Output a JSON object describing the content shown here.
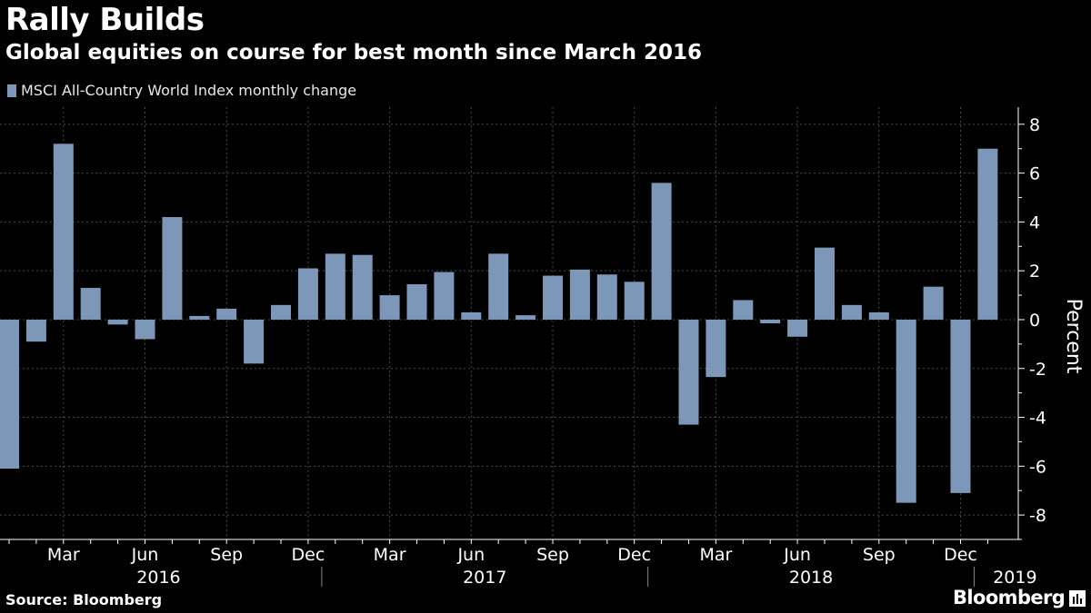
{
  "header": {
    "title": "Rally Builds",
    "subtitle": "Global equities on course for best month since March 2016"
  },
  "footer": {
    "source": "Source: Bloomberg",
    "brand": "Bloomberg"
  },
  "colors": {
    "background": "#000000",
    "bar": "#7d97b9",
    "grid": "#4a4a4a",
    "text": "#ffffff"
  },
  "chart_data": {
    "type": "bar",
    "title": "Global equities on course for best month since March 2016",
    "xlabel": "",
    "ylabel": "Percent",
    "ylim": [
      -9,
      8.7
    ],
    "yticks": [
      8,
      6,
      4,
      2,
      0,
      -2,
      -4,
      -6,
      -8
    ],
    "grid": true,
    "legend": "top-left",
    "series": [
      {
        "name": "MSCI All-Country World Index monthly change",
        "categories": [
          "Jan 2016",
          "Feb 2016",
          "Mar 2016",
          "Apr 2016",
          "May 2016",
          "Jun 2016",
          "Jul 2016",
          "Aug 2016",
          "Sep 2016",
          "Oct 2016",
          "Nov 2016",
          "Dec 2016",
          "Jan 2017",
          "Feb 2017",
          "Mar 2017",
          "Apr 2017",
          "May 2017",
          "Jun 2017",
          "Jul 2017",
          "Aug 2017",
          "Sep 2017",
          "Oct 2017",
          "Nov 2017",
          "Dec 2017",
          "Jan 2018",
          "Feb 2018",
          "Mar 2018",
          "Apr 2018",
          "May 2018",
          "Jun 2018",
          "Jul 2018",
          "Aug 2018",
          "Sep 2018",
          "Oct 2018",
          "Nov 2018",
          "Dec 2018",
          "Jan 2019"
        ],
        "values": [
          -6.1,
          -0.9,
          7.2,
          1.3,
          -0.2,
          -0.8,
          4.2,
          0.15,
          0.45,
          -1.8,
          0.6,
          2.1,
          2.7,
          2.65,
          1.0,
          1.45,
          1.95,
          0.3,
          2.7,
          0.18,
          1.8,
          2.05,
          1.85,
          1.55,
          5.6,
          -4.3,
          -2.35,
          0.8,
          -0.15,
          -0.7,
          2.95,
          0.6,
          0.3,
          -7.5,
          1.35,
          -7.1,
          7.0
        ]
      }
    ],
    "month_ticks": [
      {
        "label": "Mar",
        "index": 2
      },
      {
        "label": "Jun",
        "index": 5
      },
      {
        "label": "Sep",
        "index": 8
      },
      {
        "label": "Dec",
        "index": 11
      },
      {
        "label": "Mar",
        "index": 14
      },
      {
        "label": "Jun",
        "index": 17
      },
      {
        "label": "Sep",
        "index": 20
      },
      {
        "label": "Dec",
        "index": 23
      },
      {
        "label": "Mar",
        "index": 26
      },
      {
        "label": "Jun",
        "index": 29
      },
      {
        "label": "Sep",
        "index": 32
      },
      {
        "label": "Dec",
        "index": 35
      }
    ],
    "years": [
      {
        "label": "2016",
        "start": 0,
        "end": 11
      },
      {
        "label": "2017",
        "start": 12,
        "end": 23
      },
      {
        "label": "2018",
        "start": 24,
        "end": 35
      },
      {
        "label": "2019",
        "start": 36,
        "end": 36
      }
    ]
  }
}
